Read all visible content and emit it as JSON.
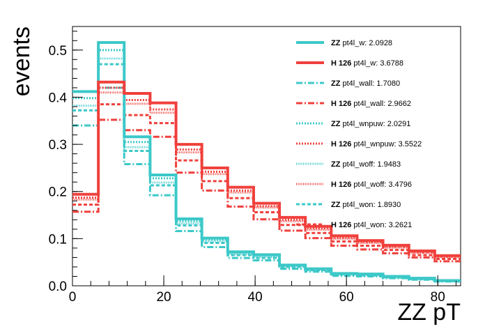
{
  "chart_data": {
    "type": "line",
    "xlabel": "ZZ pT",
    "ylabel": "events",
    "xlim": [
      0,
      85
    ],
    "ylim": [
      0,
      0.55
    ],
    "x_ticks": [
      0,
      20,
      40,
      60,
      80
    ],
    "y_ticks": [
      0.0,
      0.1,
      0.2,
      0.3,
      0.4,
      0.5
    ],
    "x_tick_labels": [
      "0",
      "20",
      "40",
      "60",
      "80"
    ],
    "y_tick_labels": [
      "0.0",
      "0.1",
      "0.2",
      "0.3",
      "0.4",
      "0.5"
    ],
    "bin_edges": [
      0,
      5.67,
      11.33,
      17.0,
      22.67,
      28.33,
      34.0,
      39.67,
      45.33,
      51.0,
      56.67,
      62.33,
      68.0,
      73.67,
      79.33,
      85.0
    ],
    "colors": {
      "ZZ": "#3cc8c8",
      "H 126": "#f0403c"
    },
    "legend_position": "top-right",
    "series": [
      {
        "name": "pt4l_w: 2.0928",
        "process": "ZZ",
        "style": "solid",
        "values": [
          0.412,
          0.516,
          0.316,
          0.235,
          0.142,
          0.101,
          0.072,
          0.066,
          0.044,
          0.036,
          0.026,
          0.025,
          0.02,
          0.016,
          0.011
        ]
      },
      {
        "name": "pt4l_w: 3.6788",
        "process": "H 126",
        "style": "solid",
        "values": [
          0.194,
          0.432,
          0.408,
          0.388,
          0.3,
          0.25,
          0.209,
          0.175,
          0.145,
          0.126,
          0.106,
          0.096,
          0.086,
          0.074,
          0.064
        ]
      },
      {
        "name": "pt4l_wall: 1.7080",
        "process": "ZZ",
        "style": "dashdot",
        "values": [
          0.34,
          0.42,
          0.258,
          0.192,
          0.116,
          0.082,
          0.059,
          0.054,
          0.036,
          0.03,
          0.021,
          0.02,
          0.016,
          0.013,
          0.009
        ]
      },
      {
        "name": "pt4l_wall: 2.9662",
        "process": "H 126",
        "style": "dashdot",
        "values": [
          0.157,
          0.352,
          0.33,
          0.316,
          0.24,
          0.202,
          0.168,
          0.141,
          0.117,
          0.101,
          0.085,
          0.077,
          0.069,
          0.06,
          0.052
        ]
      },
      {
        "name": "pt4l_wnpuw: 2.0291",
        "process": "ZZ",
        "style": "dotted",
        "values": [
          0.398,
          0.5,
          0.305,
          0.228,
          0.137,
          0.098,
          0.07,
          0.064,
          0.043,
          0.035,
          0.025,
          0.024,
          0.019,
          0.015,
          0.011
        ]
      },
      {
        "name": "pt4l_wnpuw: 3.5522",
        "process": "H 126",
        "style": "dotted",
        "values": [
          0.187,
          0.42,
          0.394,
          0.374,
          0.289,
          0.242,
          0.202,
          0.169,
          0.14,
          0.122,
          0.102,
          0.093,
          0.083,
          0.071,
          0.062
        ]
      },
      {
        "name": "pt4l_woff: 1.9483",
        "process": "ZZ",
        "style": "fine-dotted",
        "values": [
          0.382,
          0.482,
          0.294,
          0.219,
          0.132,
          0.094,
          0.067,
          0.061,
          0.041,
          0.034,
          0.024,
          0.023,
          0.018,
          0.015,
          0.01
        ]
      },
      {
        "name": "pt4l_woff: 3.4796",
        "process": "H 126",
        "style": "fine-dotted",
        "values": [
          0.183,
          0.41,
          0.386,
          0.367,
          0.283,
          0.237,
          0.198,
          0.166,
          0.137,
          0.119,
          0.1,
          0.091,
          0.081,
          0.07,
          0.061
        ]
      },
      {
        "name": "pt4l_won: 1.8930",
        "process": "ZZ",
        "style": "dashed",
        "values": [
          0.372,
          0.47,
          0.286,
          0.213,
          0.128,
          0.091,
          0.065,
          0.059,
          0.04,
          0.033,
          0.024,
          0.022,
          0.018,
          0.014,
          0.01
        ]
      },
      {
        "name": "pt4l_won: 3.2621",
        "process": "H 126",
        "style": "dashed",
        "values": [
          0.172,
          0.385,
          0.362,
          0.345,
          0.266,
          0.222,
          0.186,
          0.156,
          0.129,
          0.112,
          0.094,
          0.085,
          0.076,
          0.065,
          0.057
        ]
      }
    ]
  }
}
